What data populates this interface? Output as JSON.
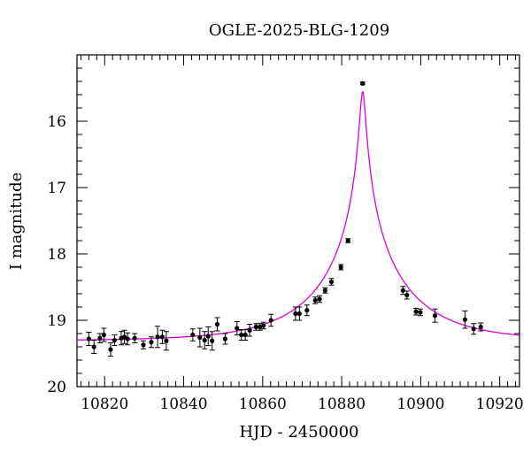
{
  "chart_data": {
    "type": "scatter",
    "title": "OGLE-2025-BLG-1209",
    "xlabel": "HJD - 2450000",
    "ylabel": "I magnitude",
    "xlim": [
      10813,
      10925
    ],
    "ylim": [
      20,
      15.0
    ],
    "y_inverted": true,
    "x_ticks": [
      10820,
      10840,
      10860,
      10880,
      10900,
      10920
    ],
    "y_ticks": [
      16,
      17,
      18,
      19,
      20
    ],
    "x_minor_step": 2,
    "y_minor_step": 0.2,
    "grid": false,
    "legend": "none",
    "colors": {
      "points": "#000000",
      "model": "#dd00dd"
    },
    "series": [
      {
        "kind": "points_with_errorbars",
        "x": [
          10816.0,
          10817.3,
          10818.8,
          10819.8,
          10821.5,
          10822.5,
          10824.2,
          10825.0,
          10825.8,
          10827.6,
          10829.8,
          10831.8,
          10833.4,
          10834.6,
          10835.6,
          10842.3,
          10844.1,
          10845.3,
          10846.2,
          10847.2,
          10848.5,
          10850.5,
          10853.5,
          10854.6,
          10855.6,
          10856.7,
          10858.3,
          10859.3,
          10860.2,
          10862.1,
          10868.3,
          10869.3,
          10871.2,
          10873.3,
          10874.4,
          10875.8,
          10877.4,
          10879.8,
          10881.6,
          10885.3,
          10895.5,
          10896.5,
          10898.8,
          10899.9,
          10903.6,
          10911.2,
          10913.4,
          10915.2
        ],
        "y": [
          19.28,
          19.4,
          19.27,
          19.22,
          19.44,
          19.3,
          19.27,
          19.25,
          19.28,
          19.27,
          19.37,
          19.33,
          19.25,
          19.25,
          19.31,
          19.22,
          19.26,
          19.3,
          19.24,
          19.31,
          19.06,
          19.28,
          19.12,
          19.22,
          19.22,
          19.15,
          19.1,
          19.1,
          19.08,
          19.0,
          18.9,
          18.9,
          18.85,
          18.7,
          18.68,
          18.55,
          18.42,
          18.2,
          17.8,
          15.43,
          18.55,
          18.62,
          18.87,
          18.88,
          18.93,
          18.99,
          19.13,
          19.1
        ],
        "err": [
          0.1,
          0.1,
          0.07,
          0.1,
          0.1,
          0.08,
          0.1,
          0.1,
          0.09,
          0.07,
          0.06,
          0.08,
          0.16,
          0.1,
          0.14,
          0.09,
          0.14,
          0.13,
          0.14,
          0.14,
          0.1,
          0.08,
          0.1,
          0.08,
          0.08,
          0.09,
          0.05,
          0.05,
          0.05,
          0.09,
          0.1,
          0.1,
          0.08,
          0.05,
          0.05,
          0.04,
          0.05,
          0.04,
          0.03,
          0.02,
          0.06,
          0.06,
          0.05,
          0.05,
          0.1,
          0.13,
          0.08,
          0.06
        ]
      },
      {
        "kind": "model_curve",
        "baseline_mag": 19.31,
        "t0": 10885.3,
        "tE": 22,
        "u0": 0.0315
      }
    ]
  }
}
